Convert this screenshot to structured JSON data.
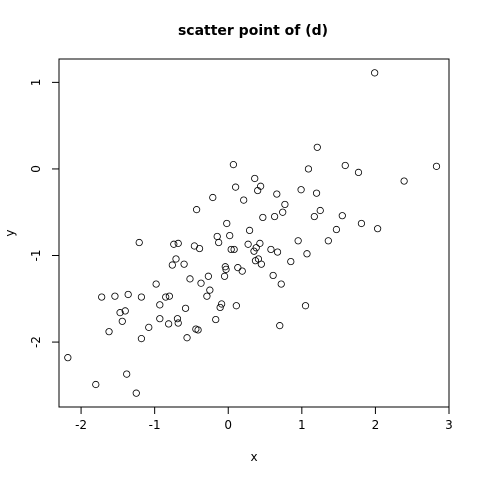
{
  "chart_data": {
    "type": "scatter",
    "title": "scatter point of (d)",
    "xlabel": "x",
    "ylabel": "y",
    "xlim": [
      -2.3,
      3.0
    ],
    "ylim": [
      -2.75,
      1.27
    ],
    "xticks": [
      -2,
      -1,
      0,
      1,
      2,
      3
    ],
    "yticks": [
      -2,
      -1,
      0,
      1
    ],
    "xtick_labels": [
      "-2",
      "-1",
      "0",
      "1",
      "2",
      "3"
    ],
    "ytick_labels": [
      "-2",
      "-1",
      "0",
      "1"
    ],
    "grid": false,
    "points": [
      [
        -2.18,
        -2.18
      ],
      [
        -1.8,
        -2.49
      ],
      [
        -1.72,
        -1.48
      ],
      [
        -1.62,
        -1.88
      ],
      [
        -1.54,
        -1.47
      ],
      [
        -1.47,
        -1.66
      ],
      [
        -1.44,
        -1.76
      ],
      [
        -1.4,
        -1.64
      ],
      [
        -1.38,
        -2.37
      ],
      [
        -1.36,
        -1.45
      ],
      [
        -1.25,
        -2.59
      ],
      [
        -1.21,
        -0.85
      ],
      [
        -1.18,
        -1.96
      ],
      [
        -1.18,
        -1.48
      ],
      [
        -1.08,
        -1.83
      ],
      [
        -0.98,
        -1.33
      ],
      [
        -0.93,
        -1.57
      ],
      [
        -0.93,
        -1.73
      ],
      [
        -0.85,
        -1.48
      ],
      [
        -0.81,
        -1.79
      ],
      [
        -0.8,
        -1.47
      ],
      [
        -0.76,
        -1.11
      ],
      [
        -0.74,
        -0.87
      ],
      [
        -0.71,
        -1.04
      ],
      [
        -0.69,
        -1.73
      ],
      [
        -0.68,
        -1.78
      ],
      [
        -0.68,
        -0.86
      ],
      [
        -0.6,
        -1.1
      ],
      [
        -0.58,
        -1.61
      ],
      [
        -0.56,
        -1.95
      ],
      [
        -0.52,
        -1.27
      ],
      [
        -0.46,
        -0.89
      ],
      [
        -0.44,
        -1.85
      ],
      [
        -0.43,
        -0.47
      ],
      [
        -0.41,
        -1.86
      ],
      [
        -0.39,
        -0.92
      ],
      [
        -0.37,
        -1.32
      ],
      [
        -0.29,
        -1.47
      ],
      [
        -0.27,
        -1.24
      ],
      [
        -0.25,
        -1.4
      ],
      [
        -0.21,
        -0.33
      ],
      [
        -0.17,
        -1.74
      ],
      [
        -0.15,
        -0.78
      ],
      [
        -0.13,
        -0.85
      ],
      [
        -0.11,
        -1.6
      ],
      [
        -0.09,
        -1.56
      ],
      [
        -0.05,
        -1.24
      ],
      [
        -0.04,
        -1.13
      ],
      [
        -0.03,
        -1.16
      ],
      [
        -0.02,
        -0.63
      ],
      [
        0.02,
        -0.77
      ],
      [
        0.04,
        -0.93
      ],
      [
        0.07,
        0.05
      ],
      [
        0.08,
        -0.93
      ],
      [
        0.1,
        -0.21
      ],
      [
        0.11,
        -1.58
      ],
      [
        0.13,
        -1.14
      ],
      [
        0.19,
        -1.18
      ],
      [
        0.21,
        -0.36
      ],
      [
        0.27,
        -0.87
      ],
      [
        0.29,
        -0.71
      ],
      [
        0.35,
        -0.95
      ],
      [
        0.36,
        -0.11
      ],
      [
        0.37,
        -1.06
      ],
      [
        0.38,
        -0.91
      ],
      [
        0.4,
        -0.25
      ],
      [
        0.41,
        -1.04
      ],
      [
        0.43,
        -0.86
      ],
      [
        0.44,
        -0.2
      ],
      [
        0.45,
        -1.1
      ],
      [
        0.47,
        -0.56
      ],
      [
        0.58,
        -0.93
      ],
      [
        0.61,
        -1.23
      ],
      [
        0.63,
        -0.55
      ],
      [
        0.66,
        -0.29
      ],
      [
        0.67,
        -0.96
      ],
      [
        0.7,
        -1.81
      ],
      [
        0.72,
        -1.33
      ],
      [
        0.74,
        -0.5
      ],
      [
        0.77,
        -0.41
      ],
      [
        0.85,
        -1.07
      ],
      [
        0.95,
        -0.83
      ],
      [
        0.99,
        -0.24
      ],
      [
        1.05,
        -1.58
      ],
      [
        1.07,
        -0.98
      ],
      [
        1.09,
        0.0
      ],
      [
        1.17,
        -0.55
      ],
      [
        1.2,
        -0.28
      ],
      [
        1.21,
        0.25
      ],
      [
        1.25,
        -0.48
      ],
      [
        1.36,
        -0.83
      ],
      [
        1.47,
        -0.7
      ],
      [
        1.55,
        -0.54
      ],
      [
        1.59,
        0.04
      ],
      [
        1.77,
        -0.04
      ],
      [
        1.81,
        -0.63
      ],
      [
        1.99,
        1.11
      ],
      [
        2.03,
        -0.69
      ],
      [
        2.39,
        -0.14
      ],
      [
        2.83,
        0.03
      ]
    ]
  }
}
